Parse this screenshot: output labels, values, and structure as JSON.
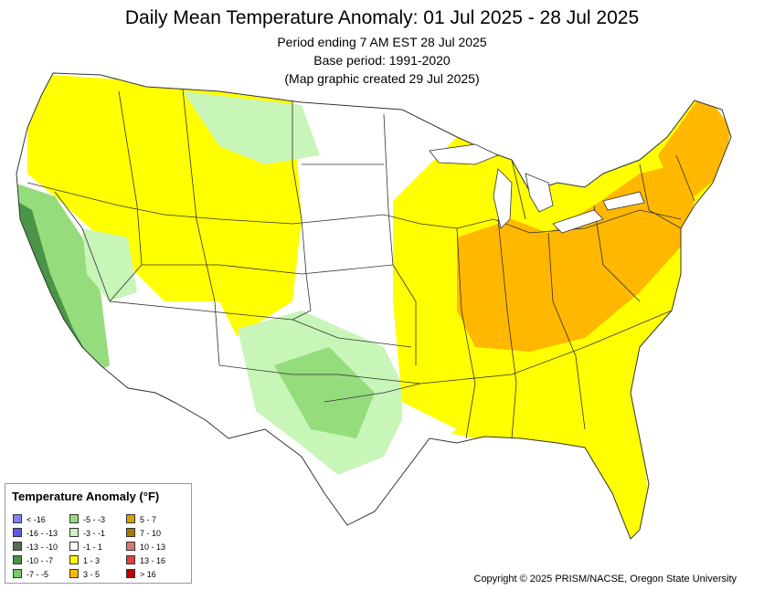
{
  "header": {
    "title": "Daily Mean Temperature Anomaly: 01 Jul 2025 - 28 Jul 2025",
    "period": "Period ending 7 AM EST 28 Jul 2025",
    "base": "Base period: 1991-2020",
    "created": "(Map graphic created 29 Jul 2025)"
  },
  "legend": {
    "title": "Temperature Anomaly (°F)",
    "items": [
      {
        "label": "< -16",
        "color": "#7f7fff"
      },
      {
        "label": "-16 - -13",
        "color": "#5a5ae6"
      },
      {
        "label": "-13 - -10",
        "color": "#52704f"
      },
      {
        "label": "-10 - -7",
        "color": "#4a9446"
      },
      {
        "label": "-7 - -5",
        "color": "#78c86a"
      },
      {
        "label": "-5 - -3",
        "color": "#95dc7c"
      },
      {
        "label": "-3 - -1",
        "color": "#c8f5b8"
      },
      {
        "label": "-1 - 1",
        "color": "#ffffff"
      },
      {
        "label": "1 - 3",
        "color": "#ffff00"
      },
      {
        "label": "3 - 5",
        "color": "#ffb700"
      },
      {
        "label": "5 - 7",
        "color": "#d9a200"
      },
      {
        "label": "7 - 10",
        "color": "#a67a00"
      },
      {
        "label": "10 - 13",
        "color": "#d97a7a"
      },
      {
        "label": "13 - 16",
        "color": "#e04040"
      },
      {
        "label": "> 16",
        "color": "#c00000"
      }
    ]
  },
  "copyright": "Copyright © 2025 PRISM/NACSE, Oregon State University",
  "colors": {
    "neutral": "#ffffff",
    "warm1": "#ffff00",
    "warm2": "#ffb700",
    "warm3": "#d9a200",
    "cool1": "#c8f5b8",
    "cool2": "#95dc7c",
    "cool3": "#78c86a",
    "cool4": "#4a9446",
    "border": "#333333"
  }
}
